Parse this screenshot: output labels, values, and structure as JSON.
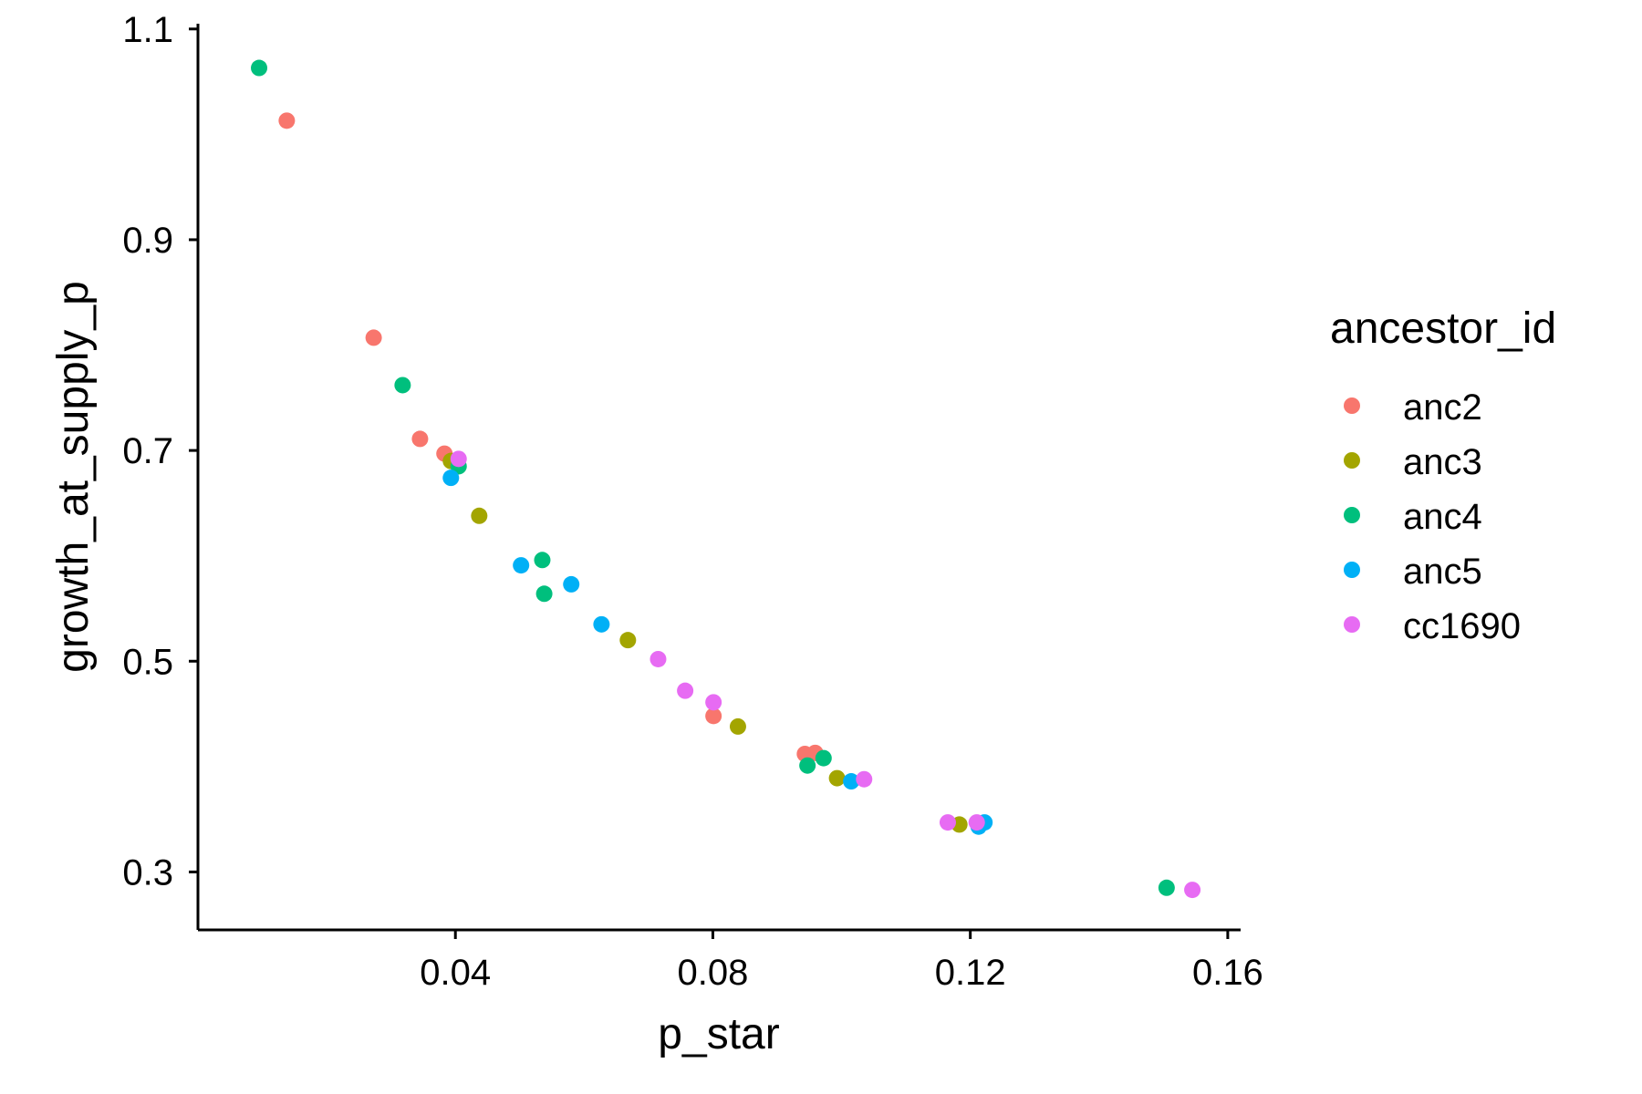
{
  "chart_data": {
    "type": "scatter",
    "title": "",
    "xlabel": "p_star",
    "ylabel": "growth_at_supply_p",
    "xlim": [
      0.0,
      0.162
    ],
    "ylim": [
      0.245,
      1.105
    ],
    "xticks": [
      0.04,
      0.08,
      0.12,
      0.16
    ],
    "xtick_labels": [
      "0.04",
      "0.08",
      "0.12",
      "0.16"
    ],
    "yticks": [
      0.3,
      0.5,
      0.7,
      0.9,
      1.1
    ],
    "ytick_labels": [
      "0.3",
      "0.5",
      "0.7",
      "0.9",
      "1.1"
    ],
    "grid": false,
    "legend": {
      "title": "ancestor_id",
      "position": "right"
    },
    "series": [
      {
        "name": "anc2",
        "color": "#F8766D",
        "points": [
          [
            0.0138,
            1.013
          ],
          [
            0.0273,
            0.807
          ],
          [
            0.0345,
            0.711
          ],
          [
            0.0383,
            0.697
          ],
          [
            0.0801,
            0.448
          ],
          [
            0.0943,
            0.412
          ],
          [
            0.0959,
            0.413
          ]
        ]
      },
      {
        "name": "anc3",
        "color": "#A3A500",
        "points": [
          [
            0.0393,
            0.69
          ],
          [
            0.0437,
            0.638
          ],
          [
            0.0668,
            0.52
          ],
          [
            0.0839,
            0.438
          ],
          [
            0.0993,
            0.389
          ],
          [
            0.1183,
            0.345
          ]
        ]
      },
      {
        "name": "anc4",
        "color": "#00BF7D",
        "points": [
          [
            0.0095,
            1.063
          ],
          [
            0.0318,
            0.762
          ],
          [
            0.0405,
            0.685
          ],
          [
            0.0535,
            0.596
          ],
          [
            0.0538,
            0.564
          ],
          [
            0.0947,
            0.401
          ],
          [
            0.0972,
            0.408
          ],
          [
            0.1505,
            0.285
          ]
        ]
      },
      {
        "name": "anc5",
        "color": "#00B0F6",
        "points": [
          [
            0.0393,
            0.674
          ],
          [
            0.0502,
            0.591
          ],
          [
            0.058,
            0.573
          ],
          [
            0.0627,
            0.535
          ],
          [
            0.1015,
            0.386
          ],
          [
            0.1213,
            0.343
          ],
          [
            0.1222,
            0.347
          ]
        ]
      },
      {
        "name": "cc1690",
        "color": "#E76BF3",
        "points": [
          [
            0.0405,
            0.692
          ],
          [
            0.0715,
            0.502
          ],
          [
            0.0757,
            0.472
          ],
          [
            0.0801,
            0.461
          ],
          [
            0.1035,
            0.388
          ],
          [
            0.1165,
            0.347
          ],
          [
            0.121,
            0.347
          ],
          [
            0.1545,
            0.283
          ]
        ]
      }
    ]
  }
}
